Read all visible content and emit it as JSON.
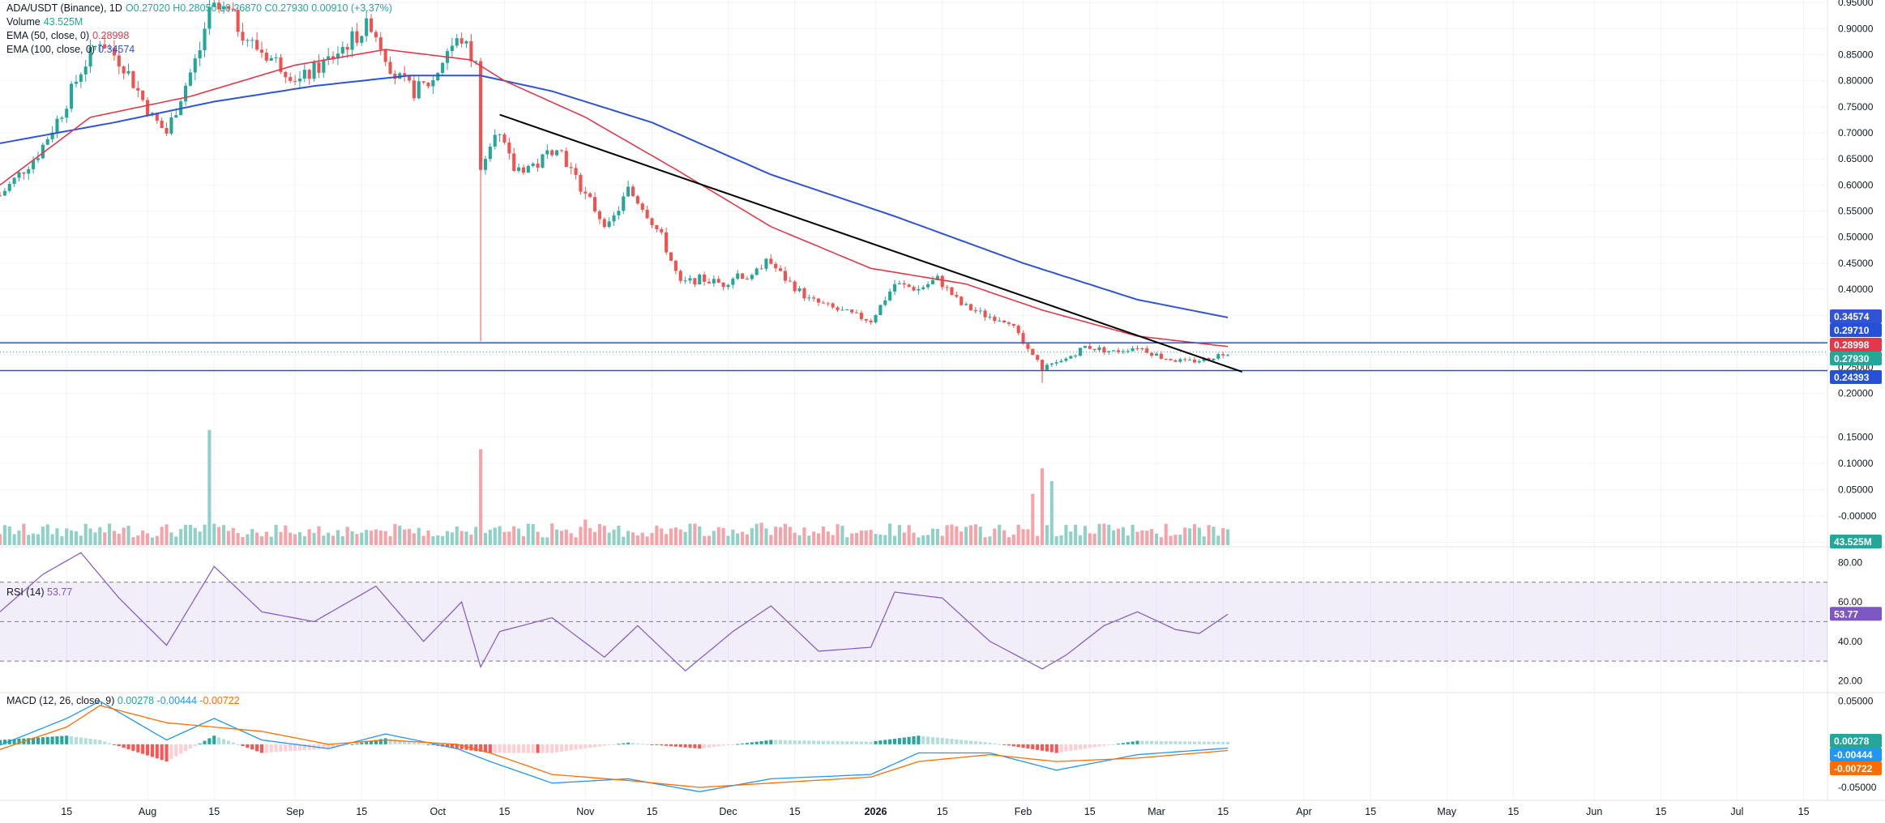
{
  "legend": {
    "symbol": "ADA/USDT (Binance), 1D",
    "ohlc": "O0.27020 H0.28050 L0.26870 C0.27930 0.00910 (+3.37%)",
    "volume_label": "Volume",
    "volume_value": "43.525M",
    "ema50_label": "EMA (50, close, 0)",
    "ema50_value": "0.28998",
    "ema100_label": "EMA (100, close, 0)",
    "ema100_value": "0.34574",
    "rsi_label": "RSI (14)",
    "rsi_value": "53.77",
    "macd_label": "MACD (12, 26, close, 9)",
    "macd_values": [
      "0.00278",
      "-0.00444",
      "-0.00722"
    ]
  },
  "colors": {
    "up": "#26a69a",
    "down": "#ef5350",
    "up_vol": "#8fd1c6",
    "down_vol": "#f5a3a8",
    "ema50": "#e2394a",
    "ema100": "#2f54d6",
    "trendline": "#000000",
    "hline": "#2650d8",
    "rsi": "#7e57c2",
    "macd": "#2196f3",
    "signal": "#ff6d00",
    "grid": "#f0f3fa"
  },
  "price_axis_labels": [
    "0.95000",
    "0.90000",
    "0.85000",
    "0.80000",
    "0.75000",
    "0.70000",
    "0.65000",
    "0.60000",
    "0.55000",
    "0.50000",
    "0.45000",
    "0.40000",
    "0.35000",
    "0.30000",
    "0.25000",
    "0.20000",
    "0.15000",
    "0.10000",
    "0.05000",
    "-0.00000",
    "-0.05000"
  ],
  "rsi_axis_labels": [
    "80.00",
    "60.00",
    "40.00",
    "20.00"
  ],
  "macd_axis_labels": [
    "0.05000",
    "-0.05000"
  ],
  "price_tags": [
    {
      "value": "0.34574",
      "color": "#2f54d6"
    },
    {
      "value": "0.29710",
      "color": "#2650d8"
    },
    {
      "value": "0.28998",
      "color": "#e2394a"
    },
    {
      "value": "0.27930",
      "color": "#26a69a"
    },
    {
      "value": "0.24393",
      "color": "#2650d8"
    }
  ],
  "volume_tag": {
    "value": "43.525M",
    "color": "#26a69a"
  },
  "rsi_tag": {
    "value": "53.77",
    "color": "#7e57c2"
  },
  "macd_tags": [
    {
      "value": "0.00278",
      "color": "#26a69a"
    },
    {
      "value": "-0.00444",
      "color": "#2196f3"
    },
    {
      "value": "-0.00722",
      "color": "#ff6d00"
    }
  ],
  "time_axis": [
    {
      "label": "15",
      "date": "2025-07-15"
    },
    {
      "label": "Aug",
      "date": "2025-08-01"
    },
    {
      "label": "15",
      "date": "2025-08-15"
    },
    {
      "label": "Sep",
      "date": "2025-09-01"
    },
    {
      "label": "15",
      "date": "2025-09-15"
    },
    {
      "label": "Oct",
      "date": "2025-10-01"
    },
    {
      "label": "15",
      "date": "2025-10-15"
    },
    {
      "label": "Nov",
      "date": "2025-11-01"
    },
    {
      "label": "15",
      "date": "2025-11-15"
    },
    {
      "label": "Dec",
      "date": "2025-12-01"
    },
    {
      "label": "15",
      "date": "2025-12-15"
    },
    {
      "label": "2026",
      "date": "2026-01-01",
      "bold": true
    },
    {
      "label": "15",
      "date": "2026-01-15"
    },
    {
      "label": "Feb",
      "date": "2026-02-01"
    },
    {
      "label": "15",
      "date": "2026-02-15"
    },
    {
      "label": "Mar",
      "date": "2026-03-01"
    },
    {
      "label": "15",
      "date": "2026-03-15"
    },
    {
      "label": "Apr",
      "date": "2026-04-01"
    },
    {
      "label": "15",
      "date": "2026-04-15"
    },
    {
      "label": "May",
      "date": "2026-05-01"
    },
    {
      "label": "15",
      "date": "2026-05-15"
    },
    {
      "label": "Jun",
      "date": "2026-06-01"
    },
    {
      "label": "15",
      "date": "2026-06-15"
    },
    {
      "label": "Jul",
      "date": "2026-07-01"
    },
    {
      "label": "15",
      "date": "2026-07-15"
    }
  ],
  "chart_data": {
    "type": "line",
    "title": "ADA/USDT (Binance), 1D",
    "price_anchors": [
      {
        "date": "2025-07-01",
        "close": 0.58
      },
      {
        "date": "2025-07-09",
        "close": 0.66
      },
      {
        "date": "2025-07-14",
        "close": 0.74
      },
      {
        "date": "2025-07-18",
        "close": 0.82
      },
      {
        "date": "2025-07-22",
        "close": 0.88
      },
      {
        "date": "2025-07-27",
        "close": 0.83
      },
      {
        "date": "2025-08-02",
        "close": 0.73
      },
      {
        "date": "2025-08-05",
        "close": 0.7
      },
      {
        "date": "2025-08-08",
        "close": 0.77
      },
      {
        "date": "2025-08-12",
        "close": 0.86
      },
      {
        "date": "2025-08-14",
        "close": 0.94
      },
      {
        "date": "2025-08-18",
        "close": 0.93
      },
      {
        "date": "2025-08-23",
        "close": 0.87
      },
      {
        "date": "2025-08-29",
        "close": 0.83
      },
      {
        "date": "2025-09-02",
        "close": 0.8
      },
      {
        "date": "2025-09-08",
        "close": 0.84
      },
      {
        "date": "2025-09-13",
        "close": 0.88
      },
      {
        "date": "2025-09-17",
        "close": 0.91
      },
      {
        "date": "2025-09-22",
        "close": 0.81
      },
      {
        "date": "2025-09-26",
        "close": 0.78
      },
      {
        "date": "2025-09-30",
        "close": 0.8
      },
      {
        "date": "2025-10-03",
        "close": 0.86
      },
      {
        "date": "2025-10-06",
        "close": 0.88
      },
      {
        "date": "2025-10-09",
        "close": 0.83
      },
      {
        "date": "2025-10-10",
        "close": 0.64
      },
      {
        "date": "2025-10-13",
        "close": 0.71
      },
      {
        "date": "2025-10-17",
        "close": 0.63
      },
      {
        "date": "2025-10-22",
        "close": 0.64
      },
      {
        "date": "2025-10-26",
        "close": 0.68
      },
      {
        "date": "2025-10-30",
        "close": 0.61
      },
      {
        "date": "2025-11-04",
        "close": 0.54
      },
      {
        "date": "2025-11-06",
        "close": 0.52
      },
      {
        "date": "2025-11-10",
        "close": 0.59
      },
      {
        "date": "2025-11-13",
        "close": 0.56
      },
      {
        "date": "2025-11-17",
        "close": 0.5
      },
      {
        "date": "2025-11-21",
        "close": 0.41
      },
      {
        "date": "2025-11-25",
        "close": 0.42
      },
      {
        "date": "2025-11-30",
        "close": 0.41
      },
      {
        "date": "2025-12-03",
        "close": 0.43
      },
      {
        "date": "2025-12-06",
        "close": 0.42
      },
      {
        "date": "2025-12-09",
        "close": 0.46
      },
      {
        "date": "2025-12-13",
        "close": 0.42
      },
      {
        "date": "2025-12-18",
        "close": 0.38
      },
      {
        "date": "2025-12-24",
        "close": 0.36
      },
      {
        "date": "2025-12-31",
        "close": 0.34
      },
      {
        "date": "2026-01-05",
        "close": 0.41
      },
      {
        "date": "2026-01-10",
        "close": 0.4
      },
      {
        "date": "2026-01-14",
        "close": 0.42
      },
      {
        "date": "2026-01-19",
        "close": 0.37
      },
      {
        "date": "2026-01-24",
        "close": 0.35
      },
      {
        "date": "2026-01-29",
        "close": 0.34
      },
      {
        "date": "2026-02-02",
        "close": 0.28
      },
      {
        "date": "2026-02-05",
        "close": 0.25
      },
      {
        "date": "2026-02-09",
        "close": 0.26
      },
      {
        "date": "2026-02-14",
        "close": 0.29
      },
      {
        "date": "2026-02-20",
        "close": 0.28
      },
      {
        "date": "2026-02-25",
        "close": 0.29
      },
      {
        "date": "2026-03-02",
        "close": 0.27
      },
      {
        "date": "2026-03-07",
        "close": 0.26
      },
      {
        "date": "2026-03-11",
        "close": 0.265
      },
      {
        "date": "2026-03-16",
        "close": 0.2793
      }
    ],
    "ema50_anchors": [
      {
        "date": "2025-07-01",
        "v": 0.6
      },
      {
        "date": "2025-07-20",
        "v": 0.73
      },
      {
        "date": "2025-08-10",
        "v": 0.77
      },
      {
        "date": "2025-09-01",
        "v": 0.83
      },
      {
        "date": "2025-09-20",
        "v": 0.86
      },
      {
        "date": "2025-10-08",
        "v": 0.84
      },
      {
        "date": "2025-10-15",
        "v": 0.8
      },
      {
        "date": "2025-11-01",
        "v": 0.73
      },
      {
        "date": "2025-11-20",
        "v": 0.63
      },
      {
        "date": "2025-12-10",
        "v": 0.52
      },
      {
        "date": "2025-12-31",
        "v": 0.44
      },
      {
        "date": "2026-01-20",
        "v": 0.41
      },
      {
        "date": "2026-02-05",
        "v": 0.36
      },
      {
        "date": "2026-02-25",
        "v": 0.31
      },
      {
        "date": "2026-03-16",
        "v": 0.28998
      }
    ],
    "ema100_anchors": [
      {
        "date": "2025-07-01",
        "v": 0.68
      },
      {
        "date": "2025-07-25",
        "v": 0.72
      },
      {
        "date": "2025-08-15",
        "v": 0.76
      },
      {
        "date": "2025-09-05",
        "v": 0.79
      },
      {
        "date": "2025-09-25",
        "v": 0.81
      },
      {
        "date": "2025-10-10",
        "v": 0.81
      },
      {
        "date": "2025-10-25",
        "v": 0.78
      },
      {
        "date": "2025-11-15",
        "v": 0.72
      },
      {
        "date": "2025-12-10",
        "v": 0.62
      },
      {
        "date": "2026-01-05",
        "v": 0.54
      },
      {
        "date": "2026-02-01",
        "v": 0.45
      },
      {
        "date": "2026-02-25",
        "v": 0.38
      },
      {
        "date": "2026-03-16",
        "v": 0.34574
      }
    ],
    "trendline": {
      "from": {
        "date": "2025-10-14",
        "price": 0.735
      },
      "to": {
        "date": "2026-03-19",
        "price": 0.2415
      }
    },
    "horizontal_lines": [
      0.2971,
      0.24393
    ],
    "rsi_anchors": [
      {
        "date": "2025-07-01",
        "v": 55
      },
      {
        "date": "2025-07-10",
        "v": 74
      },
      {
        "date": "2025-07-18",
        "v": 85
      },
      {
        "date": "2025-07-26",
        "v": 62
      },
      {
        "date": "2025-08-05",
        "v": 38
      },
      {
        "date": "2025-08-15",
        "v": 78
      },
      {
        "date": "2025-08-25",
        "v": 55
      },
      {
        "date": "2025-09-05",
        "v": 50
      },
      {
        "date": "2025-09-18",
        "v": 68
      },
      {
        "date": "2025-09-28",
        "v": 40
      },
      {
        "date": "2025-10-06",
        "v": 60
      },
      {
        "date": "2025-10-10",
        "v": 27
      },
      {
        "date": "2025-10-14",
        "v": 45
      },
      {
        "date": "2025-10-25",
        "v": 52
      },
      {
        "date": "2025-11-05",
        "v": 32
      },
      {
        "date": "2025-11-12",
        "v": 48
      },
      {
        "date": "2025-11-22",
        "v": 25
      },
      {
        "date": "2025-12-02",
        "v": 45
      },
      {
        "date": "2025-12-10",
        "v": 58
      },
      {
        "date": "2025-12-20",
        "v": 35
      },
      {
        "date": "2025-12-31",
        "v": 37
      },
      {
        "date": "2026-01-05",
        "v": 65
      },
      {
        "date": "2026-01-15",
        "v": 62
      },
      {
        "date": "2026-01-25",
        "v": 40
      },
      {
        "date": "2026-02-05",
        "v": 26
      },
      {
        "date": "2026-02-10",
        "v": 33
      },
      {
        "date": "2026-02-18",
        "v": 48
      },
      {
        "date": "2026-02-25",
        "v": 55
      },
      {
        "date": "2026-03-05",
        "v": 46
      },
      {
        "date": "2026-03-10",
        "v": 44
      },
      {
        "date": "2026-03-16",
        "v": 53.77
      }
    ],
    "macd_anchors": [
      {
        "date": "2025-07-01",
        "m": -0.001,
        "s": -0.006
      },
      {
        "date": "2025-07-15",
        "m": 0.03,
        "s": 0.02
      },
      {
        "date": "2025-07-22",
        "m": 0.05,
        "s": 0.045
      },
      {
        "date": "2025-08-05",
        "m": 0.005,
        "s": 0.025
      },
      {
        "date": "2025-08-15",
        "m": 0.03,
        "s": 0.02
      },
      {
        "date": "2025-08-25",
        "m": 0.005,
        "s": 0.015
      },
      {
        "date": "2025-09-08",
        "m": -0.005,
        "s": 0.0
      },
      {
        "date": "2025-09-20",
        "m": 0.012,
        "s": 0.005
      },
      {
        "date": "2025-10-05",
        "m": -0.005,
        "s": 0.0
      },
      {
        "date": "2025-10-12",
        "m": -0.02,
        "s": -0.01
      },
      {
        "date": "2025-10-25",
        "m": -0.045,
        "s": -0.035
      },
      {
        "date": "2025-11-10",
        "m": -0.04,
        "s": -0.042
      },
      {
        "date": "2025-11-25",
        "m": -0.055,
        "s": -0.05
      },
      {
        "date": "2025-12-10",
        "m": -0.04,
        "s": -0.045
      },
      {
        "date": "2025-12-31",
        "m": -0.035,
        "s": -0.038
      },
      {
        "date": "2026-01-10",
        "m": -0.01,
        "s": -0.02
      },
      {
        "date": "2026-01-25",
        "m": -0.01,
        "s": -0.012
      },
      {
        "date": "2026-02-08",
        "m": -0.03,
        "s": -0.02
      },
      {
        "date": "2026-02-25",
        "m": -0.012,
        "s": -0.016
      },
      {
        "date": "2026-03-16",
        "m": -0.00444,
        "s": -0.00722
      }
    ],
    "volume_spikes": [
      {
        "date": "2025-08-14",
        "v": 0.18
      },
      {
        "date": "2025-10-10",
        "v": 0.15
      },
      {
        "date": "2026-02-05",
        "v": 0.12
      },
      {
        "date": "2026-02-03",
        "v": 0.08
      },
      {
        "date": "2026-02-07",
        "v": 0.1
      },
      {
        "date": "2025-11-01",
        "v": 0.04
      },
      {
        "date": "2025-12-08",
        "v": 0.035
      }
    ],
    "x_range": [
      "2025-07-01",
      "2026-07-20"
    ],
    "price_ylim": [
      0.17,
      0.955
    ],
    "rsi_ylim": [
      14,
      88
    ],
    "macd_ylim": [
      -0.065,
      0.06
    ],
    "grid": true
  }
}
